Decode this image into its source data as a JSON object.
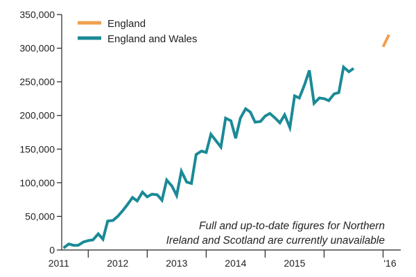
{
  "chart_data": {
    "type": "line",
    "title": "",
    "xlabel": "",
    "ylabel": "",
    "ylim": [
      0,
      350000
    ],
    "xlim": [
      2010.55,
      2016.3
    ],
    "grid": false,
    "legend_position": "top-left",
    "y_ticks": [
      {
        "value": 0,
        "label": "0"
      },
      {
        "value": 50000,
        "label": "50,000"
      },
      {
        "value": 100000,
        "label": "100,000"
      },
      {
        "value": 150000,
        "label": "150,000"
      },
      {
        "value": 200000,
        "label": "200,000"
      },
      {
        "value": 250000,
        "label": "250,000"
      },
      {
        "value": 300000,
        "label": "300,000"
      },
      {
        "value": 350000,
        "label": "350,000"
      }
    ],
    "x_year_ticks": [
      2011,
      2012,
      2013,
      2014,
      2015,
      2016
    ],
    "x_labels": [
      {
        "value": 2011,
        "label": "2011"
      },
      {
        "value": 2012,
        "label": "2012"
      },
      {
        "value": 2013,
        "label": "2013"
      },
      {
        "value": 2014,
        "label": "2014"
      },
      {
        "value": 2015,
        "label": "2015"
      },
      {
        "value": 2016,
        "label": "'16"
      }
    ],
    "series": [
      {
        "name": "England",
        "color": "#f0a050",
        "points": [
          [
            2016.0,
            302000
          ],
          [
            2016.1,
            320000
          ]
        ]
      },
      {
        "name": "England and Wales",
        "color": "#1a8a96",
        "points": [
          [
            2010.58,
            3000
          ],
          [
            2010.67,
            9000
          ],
          [
            2010.75,
            7000
          ],
          [
            2010.83,
            7000
          ],
          [
            2010.92,
            12000
          ],
          [
            2011.0,
            14000
          ],
          [
            2011.08,
            15000
          ],
          [
            2011.17,
            24000
          ],
          [
            2011.25,
            16000
          ],
          [
            2011.33,
            43000
          ],
          [
            2011.42,
            44000
          ],
          [
            2011.5,
            50000
          ],
          [
            2011.58,
            58000
          ],
          [
            2011.67,
            68000
          ],
          [
            2011.75,
            78000
          ],
          [
            2011.83,
            73000
          ],
          [
            2011.92,
            86000
          ],
          [
            2012.0,
            79000
          ],
          [
            2012.08,
            83000
          ],
          [
            2012.17,
            82000
          ],
          [
            2012.25,
            74000
          ],
          [
            2012.33,
            104000
          ],
          [
            2012.42,
            95000
          ],
          [
            2012.5,
            81000
          ],
          [
            2012.58,
            117000
          ],
          [
            2012.67,
            101000
          ],
          [
            2012.75,
            99000
          ],
          [
            2012.83,
            142000
          ],
          [
            2012.92,
            147000
          ],
          [
            2013.0,
            145000
          ],
          [
            2013.08,
            172000
          ],
          [
            2013.17,
            162000
          ],
          [
            2013.25,
            153000
          ],
          [
            2013.33,
            196000
          ],
          [
            2013.42,
            192000
          ],
          [
            2013.5,
            166000
          ],
          [
            2013.58,
            196000
          ],
          [
            2013.67,
            210000
          ],
          [
            2013.75,
            205000
          ],
          [
            2013.83,
            190000
          ],
          [
            2013.92,
            191000
          ],
          [
            2014.0,
            199000
          ],
          [
            2014.08,
            203000
          ],
          [
            2014.17,
            196000
          ],
          [
            2014.25,
            189000
          ],
          [
            2014.33,
            201000
          ],
          [
            2014.42,
            182000
          ],
          [
            2014.5,
            229000
          ],
          [
            2014.58,
            226000
          ],
          [
            2014.67,
            246000
          ],
          [
            2014.75,
            267000
          ],
          [
            2014.83,
            218000
          ],
          [
            2014.92,
            226000
          ],
          [
            2015.0,
            225000
          ],
          [
            2015.08,
            222000
          ],
          [
            2015.17,
            232000
          ],
          [
            2015.25,
            234000
          ],
          [
            2015.33,
            272000
          ],
          [
            2015.42,
            265000
          ],
          [
            2015.5,
            270000
          ]
        ]
      }
    ],
    "annotation": [
      "Full and up-to-date figures for Northern",
      "Ireland and Scotland are currently unavailable"
    ]
  }
}
